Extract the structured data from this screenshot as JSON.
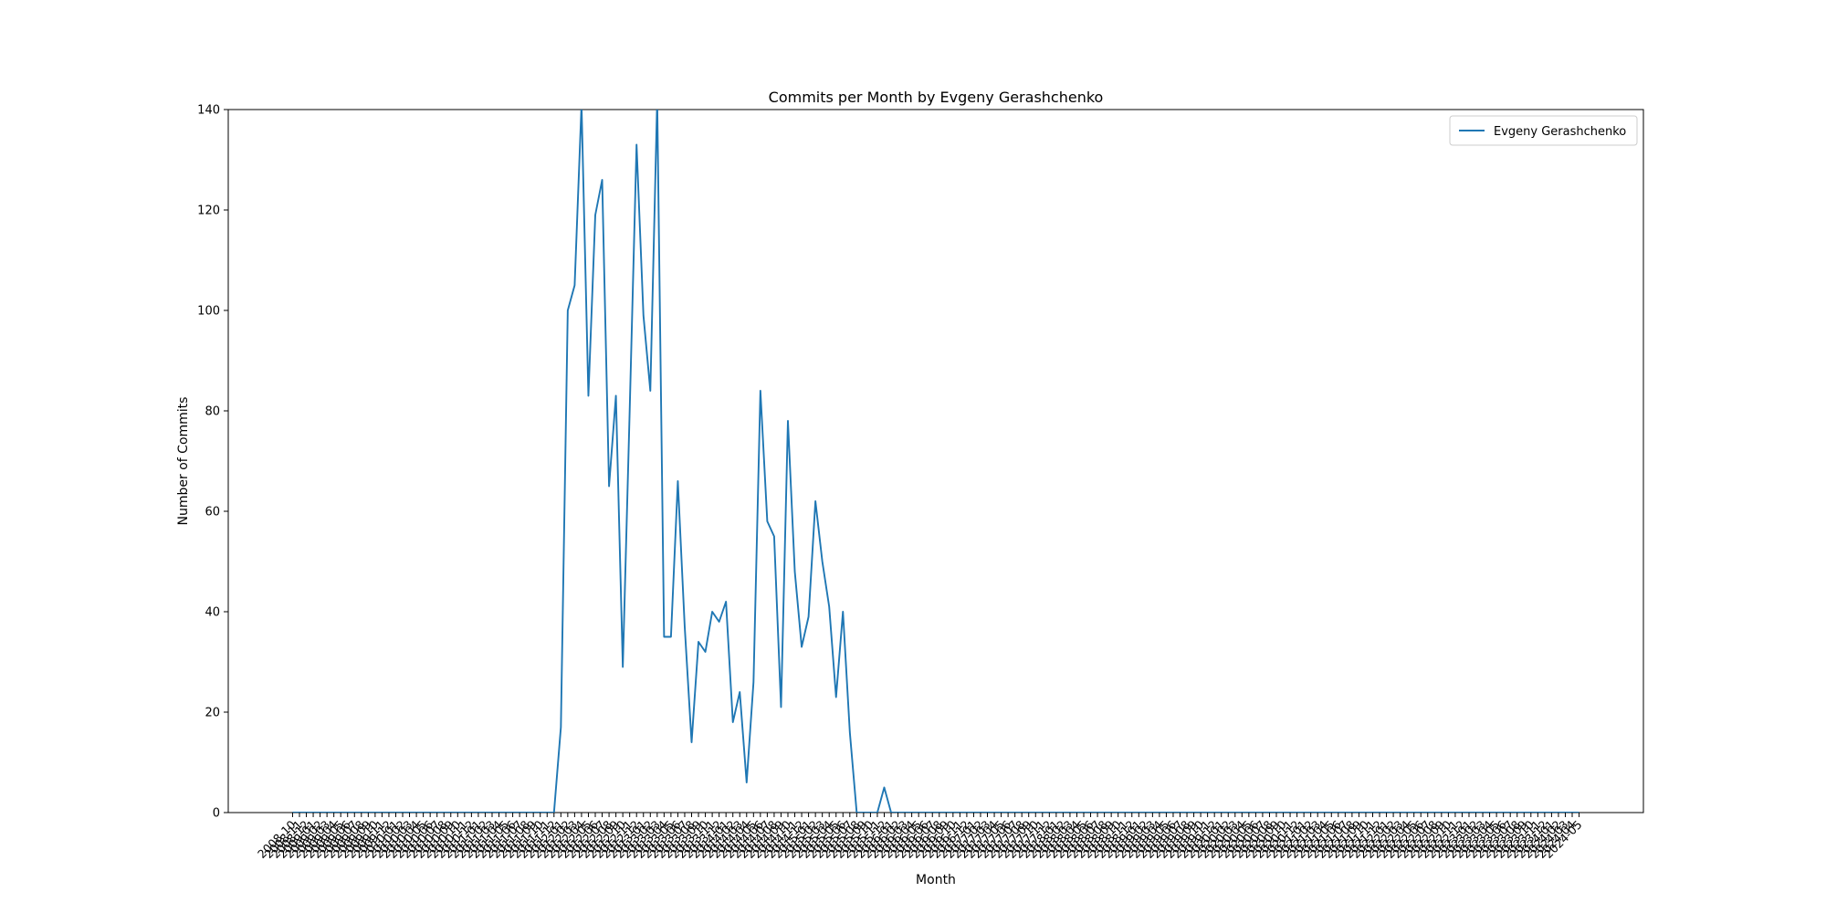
{
  "chart_data": {
    "type": "line",
    "title": "Commits per Month by Evgeny Gerashchenko",
    "x_label": "Month",
    "y_label": "Number of Commits",
    "categories": [
      "2008-10",
      "2008-11",
      "2008-12",
      "2009-01",
      "2009-02",
      "2009-03",
      "2009-04",
      "2009-05",
      "2009-06",
      "2009-07",
      "2009-08",
      "2009-09",
      "2009-10",
      "2009-11",
      "2009-12",
      "2010-01",
      "2010-02",
      "2010-03",
      "2010-04",
      "2010-05",
      "2010-06",
      "2010-07",
      "2010-08",
      "2010-09",
      "2010-10",
      "2010-11",
      "2010-12",
      "2011-01",
      "2011-02",
      "2011-03",
      "2011-04",
      "2011-05",
      "2011-06",
      "2011-07",
      "2011-08",
      "2011-09",
      "2011-10",
      "2011-11",
      "2011-12",
      "2012-01",
      "2012-02",
      "2012-03",
      "2012-04",
      "2012-05",
      "2012-06",
      "2012-07",
      "2012-08",
      "2012-09",
      "2012-10",
      "2012-11",
      "2012-12",
      "2013-01",
      "2013-02",
      "2013-03",
      "2013-04",
      "2013-05",
      "2013-06",
      "2013-07",
      "2013-08",
      "2013-09",
      "2013-10",
      "2013-11",
      "2013-12",
      "2014-01",
      "2014-02",
      "2014-03",
      "2014-04",
      "2014-05",
      "2014-06",
      "2014-07",
      "2014-08",
      "2014-09",
      "2014-10",
      "2014-11",
      "2014-12",
      "2015-01",
      "2015-02",
      "2015-03",
      "2015-04",
      "2015-05",
      "2015-06",
      "2015-07",
      "2015-08",
      "2015-09",
      "2015-10",
      "2015-11",
      "2015-12",
      "2016-01",
      "2016-02",
      "2016-03",
      "2016-04",
      "2016-05",
      "2016-06",
      "2016-07",
      "2016-08",
      "2016-09",
      "2016-10",
      "2016-11",
      "2016-12",
      "2017-01",
      "2017-02",
      "2017-03",
      "2017-04",
      "2017-05",
      "2017-06",
      "2017-07",
      "2017-08",
      "2017-09",
      "2017-10",
      "2017-11",
      "2017-12",
      "2018-01",
      "2018-02",
      "2018-03",
      "2018-04",
      "2018-05",
      "2018-06",
      "2018-07",
      "2018-08",
      "2018-09",
      "2018-10",
      "2018-11",
      "2018-12",
      "2019-01",
      "2019-02",
      "2019-03",
      "2019-04",
      "2019-05",
      "2019-06",
      "2019-07",
      "2019-08",
      "2019-09",
      "2019-10",
      "2019-11",
      "2019-12",
      "2020-01",
      "2020-02",
      "2020-03",
      "2020-04",
      "2020-05",
      "2020-06",
      "2020-07",
      "2020-08",
      "2020-09",
      "2020-10",
      "2020-11",
      "2020-12",
      "2021-01",
      "2021-02",
      "2021-03",
      "2021-04",
      "2021-05",
      "2021-06",
      "2021-07",
      "2021-08",
      "2021-09",
      "2021-10",
      "2021-11",
      "2021-12",
      "2022-01",
      "2022-02",
      "2022-03",
      "2022-04",
      "2022-05",
      "2022-06",
      "2022-07",
      "2022-08",
      "2022-09",
      "2022-10",
      "2022-11",
      "2022-12",
      "2023-01",
      "2023-02",
      "2023-03",
      "2023-04",
      "2023-05",
      "2023-06",
      "2023-07",
      "2023-08",
      "2023-09",
      "2023-10",
      "2023-11",
      "2023-12",
      "2024-01",
      "2024-02",
      "2024-03",
      "2024-04",
      "2024-05"
    ],
    "series": [
      {
        "name": "Evgeny Gerashchenko",
        "color": "#1f77b4",
        "values": [
          0,
          0,
          0,
          0,
          0,
          0,
          0,
          0,
          0,
          0,
          0,
          0,
          0,
          0,
          0,
          0,
          0,
          0,
          0,
          0,
          0,
          0,
          0,
          0,
          0,
          0,
          0,
          0,
          0,
          0,
          0,
          0,
          0,
          0,
          0,
          0,
          0,
          0,
          0,
          17,
          100,
          105,
          141,
          83,
          119,
          126,
          65,
          83,
          29,
          80,
          133,
          99,
          84,
          142,
          35,
          35,
          66,
          37,
          14,
          34,
          32,
          40,
          38,
          42,
          18,
          24,
          6,
          26,
          84,
          58,
          55,
          21,
          78,
          48,
          33,
          39,
          62,
          50,
          41,
          23,
          40,
          16,
          0,
          0,
          0,
          0,
          5,
          0,
          0,
          0,
          0,
          0,
          0,
          0,
          0,
          0,
          0,
          0,
          0,
          0,
          0,
          0,
          0,
          0,
          0,
          0,
          0,
          0,
          0,
          0,
          0,
          0,
          0,
          0,
          0,
          0,
          0,
          0,
          0,
          0,
          0,
          0,
          0,
          0,
          0,
          0,
          0,
          0,
          0,
          0,
          0,
          0,
          0,
          0,
          0,
          0,
          0,
          0,
          0,
          0,
          0,
          0,
          0,
          0,
          0,
          0,
          0,
          0,
          0,
          0,
          0,
          0,
          0,
          0,
          0,
          0,
          0,
          0,
          0,
          0,
          0,
          0,
          0,
          0,
          0,
          0,
          0,
          0,
          0,
          0,
          0,
          0,
          0,
          0,
          0,
          0,
          0,
          0,
          0,
          0,
          0,
          0,
          0,
          0,
          0,
          0,
          0,
          0
        ]
      }
    ],
    "ylim": [
      0,
      140
    ],
    "yticks": [
      0,
      20,
      40,
      60,
      80,
      100,
      120,
      140
    ],
    "legend": "upper right",
    "grid": false
  }
}
